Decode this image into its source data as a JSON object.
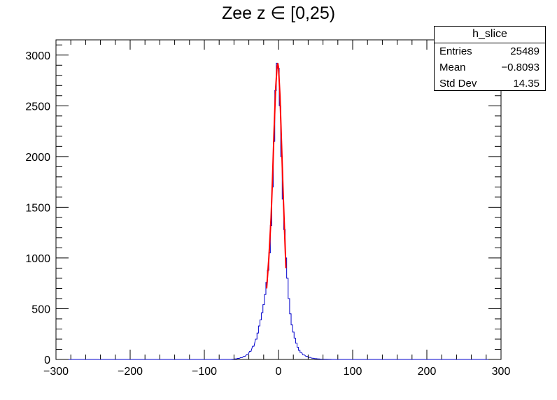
{
  "chart_data": {
    "type": "histogram",
    "title": "Zee z ∈ [0,25)",
    "xlim": [
      -300,
      300
    ],
    "ylim": [
      0,
      3150
    ],
    "x_ticks": [
      -300,
      -200,
      -100,
      0,
      100,
      200,
      300
    ],
    "x_tick_labels": [
      "−300",
      "−200",
      "−100",
      "0",
      "100",
      "200",
      "300"
    ],
    "y_ticks": [
      0,
      500,
      1000,
      1500,
      2000,
      2500,
      3000
    ],
    "y_tick_labels": [
      "0",
      "500",
      "1000",
      "1500",
      "2000",
      "2500",
      "3000"
    ],
    "bin_width": 2,
    "histogram_peak": [
      {
        "x": -62,
        "y": 2
      },
      {
        "x": -58,
        "y": 5
      },
      {
        "x": -54,
        "y": 10
      },
      {
        "x": -50,
        "y": 18
      },
      {
        "x": -46,
        "y": 30
      },
      {
        "x": -42,
        "y": 48
      },
      {
        "x": -38,
        "y": 80
      },
      {
        "x": -34,
        "y": 130
      },
      {
        "x": -30,
        "y": 200
      },
      {
        "x": -28,
        "y": 260
      },
      {
        "x": -26,
        "y": 330
      },
      {
        "x": -24,
        "y": 390
      },
      {
        "x": -22,
        "y": 460
      },
      {
        "x": -20,
        "y": 540
      },
      {
        "x": -18,
        "y": 640
      },
      {
        "x": -16,
        "y": 760
      },
      {
        "x": -14,
        "y": 880
      },
      {
        "x": -12,
        "y": 1050
      },
      {
        "x": -10,
        "y": 1320
      },
      {
        "x": -8,
        "y": 1700
      },
      {
        "x": -6,
        "y": 2150
      },
      {
        "x": -4,
        "y": 2650
      },
      {
        "x": -2,
        "y": 2920
      },
      {
        "x": 0,
        "y": 2870
      },
      {
        "x": 2,
        "y": 2500
      },
      {
        "x": 4,
        "y": 2000
      },
      {
        "x": 6,
        "y": 1580
      },
      {
        "x": 8,
        "y": 1280
      },
      {
        "x": 10,
        "y": 1000
      },
      {
        "x": 12,
        "y": 800
      },
      {
        "x": 14,
        "y": 600
      },
      {
        "x": 16,
        "y": 450
      },
      {
        "x": 18,
        "y": 340
      },
      {
        "x": 20,
        "y": 270
      },
      {
        "x": 22,
        "y": 210
      },
      {
        "x": 24,
        "y": 160
      },
      {
        "x": 26,
        "y": 120
      },
      {
        "x": 28,
        "y": 90
      },
      {
        "x": 30,
        "y": 70
      },
      {
        "x": 34,
        "y": 45
      },
      {
        "x": 38,
        "y": 30
      },
      {
        "x": 42,
        "y": 20
      },
      {
        "x": 46,
        "y": 12
      },
      {
        "x": 50,
        "y": 8
      },
      {
        "x": 54,
        "y": 5
      },
      {
        "x": 58,
        "y": 3
      },
      {
        "x": 64,
        "y": 2
      },
      {
        "x": 70,
        "y": 1
      }
    ],
    "fit_curve": [
      {
        "x": -16,
        "y": 700
      },
      {
        "x": -13,
        "y": 1000
      },
      {
        "x": -10,
        "y": 1400
      },
      {
        "x": -8,
        "y": 1800
      },
      {
        "x": -6,
        "y": 2250
      },
      {
        "x": -4,
        "y": 2650
      },
      {
        "x": -2,
        "y": 2880
      },
      {
        "x": -1,
        "y": 2920
      },
      {
        "x": 0,
        "y": 2880
      },
      {
        "x": 2,
        "y": 2600
      },
      {
        "x": 4,
        "y": 2150
      },
      {
        "x": 6,
        "y": 1700
      },
      {
        "x": 8,
        "y": 1300
      },
      {
        "x": 10,
        "y": 900
      }
    ],
    "series_colors": {
      "histogram": "#0000cc",
      "fit": "#ff0000"
    },
    "stats": {
      "name": "h_slice",
      "rows": [
        {
          "label": "Entries",
          "value": "25489"
        },
        {
          "label": "Mean",
          "value": "−0.8093"
        },
        {
          "label": "Std Dev",
          "value": "14.35"
        }
      ]
    }
  }
}
